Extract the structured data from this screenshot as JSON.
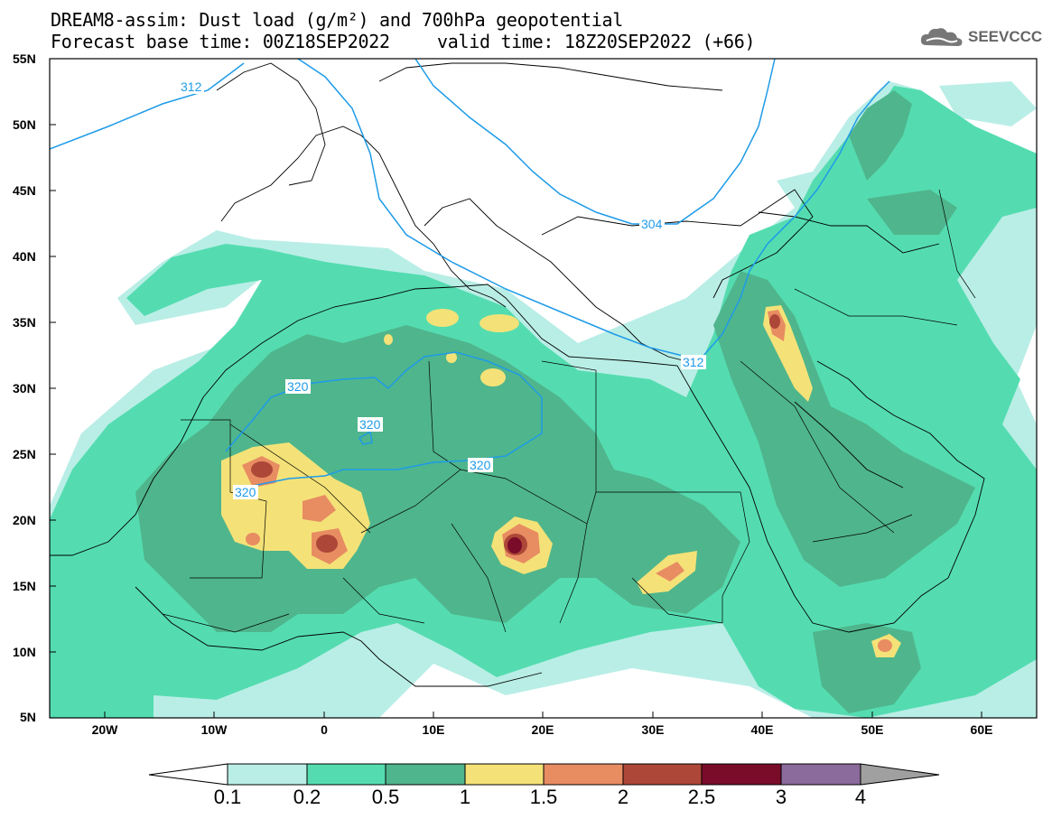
{
  "title_line1": "DREAM8-assim: Dust load (g/m²) and 700hPa geopotential",
  "title_line2a": "Forecast base time: 00Z18SEP2022",
  "title_line2b": "valid time: 18Z20SEP2022 (+66)",
  "logo_text": "SEEVCCC",
  "lat_labels": [
    "55N",
    "50N",
    "45N",
    "40N",
    "35N",
    "30N",
    "25N",
    "20N",
    "15N",
    "10N",
    "5N"
  ],
  "lon_labels": [
    "20W",
    "10W",
    "0",
    "10E",
    "20E",
    "30E",
    "40E",
    "50E",
    "60E"
  ],
  "contour_labels": [
    "312",
    "304",
    "312",
    "320",
    "320",
    "320",
    "320"
  ],
  "colorbar": {
    "levels": [
      "0.1",
      "0.2",
      "0.5",
      "1",
      "1.5",
      "2",
      "2.5",
      "3",
      "4"
    ],
    "colors": [
      "#b9eee6",
      "#54dcb0",
      "#4fb58c",
      "#f4e278",
      "#e88c62",
      "#ad4738",
      "#7a0c2a",
      "#8b6a9c"
    ]
  },
  "legend_title": "Dust load (g/m²)"
}
